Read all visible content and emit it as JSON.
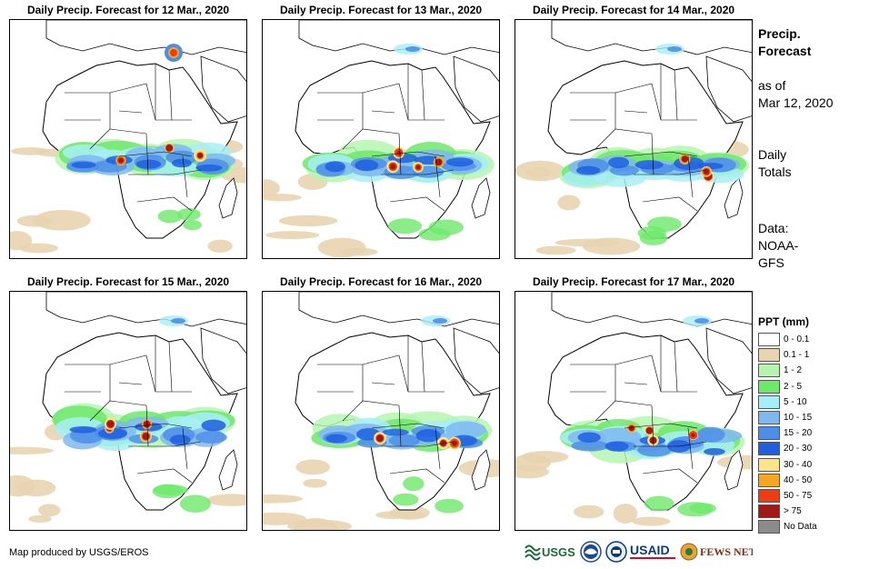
{
  "panels": [
    {
      "title": "Daily Precip. Forecast for 12 Mar., 2020",
      "intensity": 0
    },
    {
      "title": "Daily Precip. Forecast for 13 Mar., 2020",
      "intensity": 1
    },
    {
      "title": "Daily Precip. Forecast for 14 Mar., 2020",
      "intensity": 2
    },
    {
      "title": "Daily Precip. Forecast for 15 Mar., 2020",
      "intensity": 3
    },
    {
      "title": "Daily Precip. Forecast for 16 Mar., 2020",
      "intensity": 4
    },
    {
      "title": "Daily Precip. Forecast for 17 Mar., 2020",
      "intensity": 5
    }
  ],
  "sidebar": {
    "title_line1": "Precip.",
    "title_line2": "Forecast",
    "asof_line1": "as of",
    "asof_line2": "Mar 12, 2020",
    "totals_line1": "Daily",
    "totals_line2": "Totals",
    "data_line1": "Data:",
    "data_line2": "NOAA-",
    "data_line3": "GFS"
  },
  "legend": {
    "title": "PPT (mm)",
    "items": [
      {
        "label": "0 - 0.1",
        "color": "#ffffff"
      },
      {
        "label": "0.1 - 1",
        "color": "#e8d4b0"
      },
      {
        "label": "1 - 2",
        "color": "#b6f5b0"
      },
      {
        "label": "2 - 5",
        "color": "#6ee86a"
      },
      {
        "label": "5 - 10",
        "color": "#a8eef6"
      },
      {
        "label": "10 - 15",
        "color": "#7fb8f0"
      },
      {
        "label": "15 - 20",
        "color": "#4d8fe8"
      },
      {
        "label": "20 - 30",
        "color": "#1f5fe0"
      },
      {
        "label": "30 - 40",
        "color": "#fbe58a"
      },
      {
        "label": "40 - 50",
        "color": "#f5a623"
      },
      {
        "label": "50 - 75",
        "color": "#f03c10"
      },
      {
        "label": "> 75",
        "color": "#a01818"
      },
      {
        "label": "No Data",
        "color": "#8c8c8c"
      }
    ]
  },
  "credit": "Map produced by USGS/EROS",
  "logos": {
    "usgs": "USGS",
    "noaa": "NOAA",
    "usaid": "USAID",
    "fewsnet": "FEWS NET"
  }
}
